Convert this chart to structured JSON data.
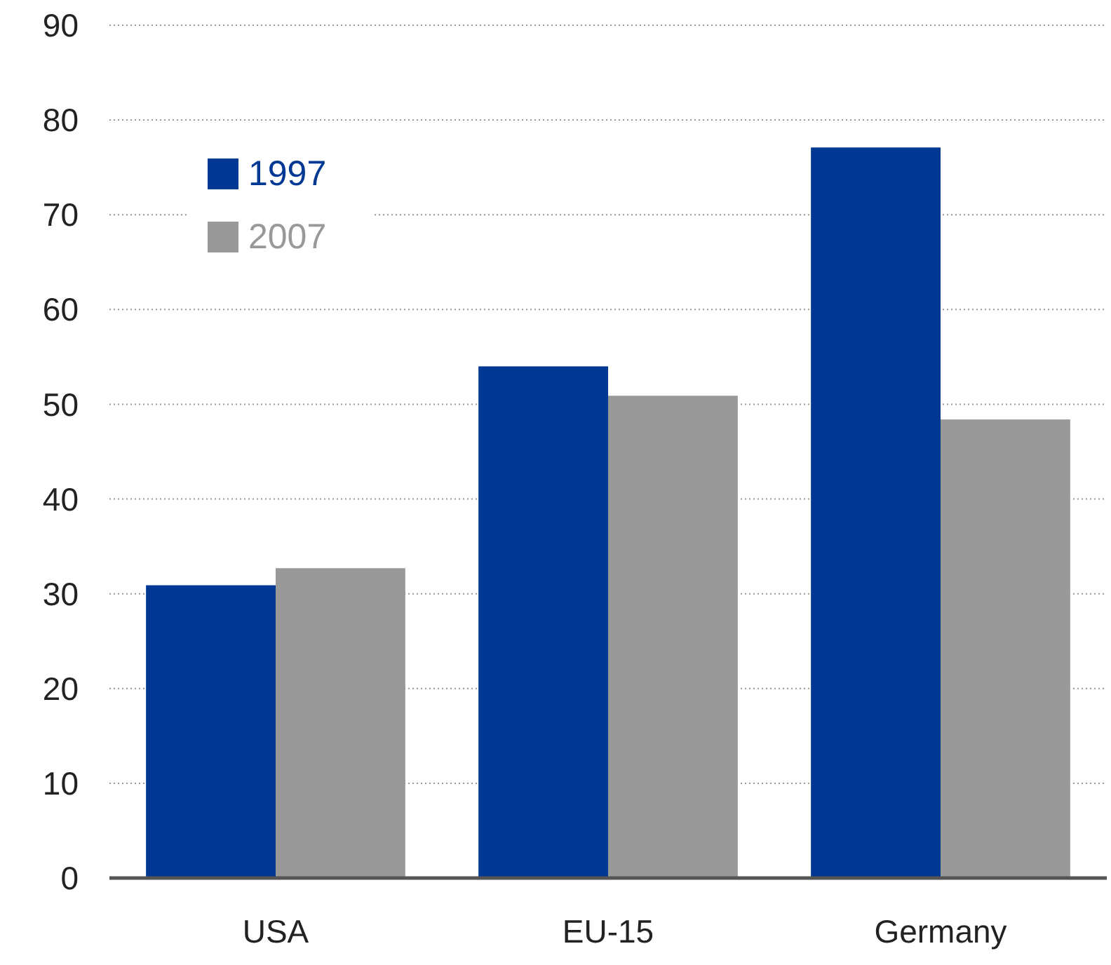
{
  "chart_data": {
    "type": "bar",
    "categories": [
      "USA",
      "EU-15",
      "Germany"
    ],
    "series": [
      {
        "name": "1997",
        "color": "#003893",
        "values": [
          30.9,
          54,
          77.1
        ]
      },
      {
        "name": "2007",
        "color": "#999999",
        "values": [
          32.7,
          50.9,
          48.4
        ]
      }
    ],
    "ylim": [
      0,
      90
    ],
    "yticks": [
      0,
      10,
      20,
      30,
      40,
      50,
      60,
      70,
      80,
      90
    ],
    "grid": "y",
    "legend": "top left"
  }
}
